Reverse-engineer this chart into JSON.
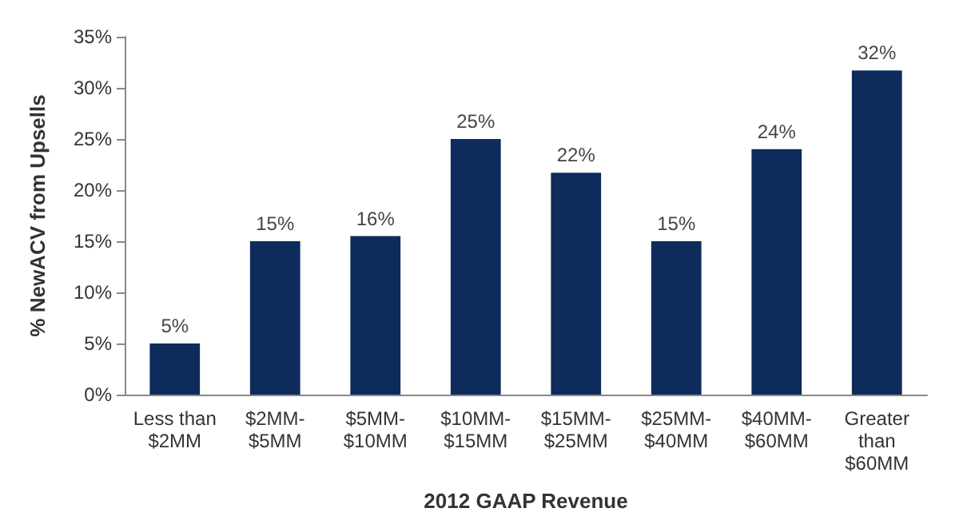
{
  "chart_data": {
    "type": "bar",
    "xlabel": "2012 GAAP Revenue",
    "ylabel": "% NewACV from Upsells",
    "categories": [
      "Less than\n$2MM",
      "$2MM-\n$5MM",
      "$5MM-\n$10MM",
      "$10MM-\n$15MM",
      "$15MM-\n$25MM",
      "$25MM-\n$40MM",
      "$40MM-\n$60MM",
      "Greater\nthan\n$60MM"
    ],
    "values": [
      5,
      15,
      15.5,
      25,
      21.7,
      15,
      24,
      31.7
    ],
    "value_labels": [
      "5%",
      "15%",
      "16%",
      "25%",
      "22%",
      "15%",
      "24%",
      "32%"
    ],
    "color": "#0d2b5b",
    "ylim": [
      0,
      35
    ],
    "yticks": [
      {
        "value": 0,
        "label": "0%"
      },
      {
        "value": 5,
        "label": "5%"
      },
      {
        "value": 10,
        "label": "10%"
      },
      {
        "value": 15,
        "label": "15%"
      },
      {
        "value": 20,
        "label": "20%"
      },
      {
        "value": 25,
        "label": "25%"
      },
      {
        "value": 30,
        "label": "30%"
      },
      {
        "value": 35,
        "label": "35%"
      }
    ],
    "grid": false
  }
}
